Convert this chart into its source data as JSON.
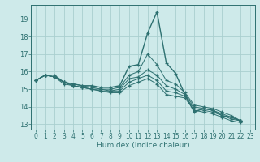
{
  "xlabel": "Humidex (Indice chaleur)",
  "bg_color": "#ceeaea",
  "grid_color": "#aacfcf",
  "line_color": "#2d7070",
  "xlim": [
    -0.5,
    23.5
  ],
  "ylim": [
    12.7,
    19.8
  ],
  "yticks": [
    13,
    14,
    15,
    16,
    17,
    18,
    19
  ],
  "xticks": [
    0,
    1,
    2,
    3,
    4,
    5,
    6,
    7,
    8,
    9,
    10,
    11,
    12,
    13,
    14,
    15,
    16,
    17,
    18,
    19,
    20,
    21,
    22,
    23
  ],
  "series": [
    [
      15.5,
      15.8,
      15.8,
      15.4,
      15.3,
      15.2,
      15.2,
      15.1,
      15.1,
      15.2,
      16.3,
      16.4,
      18.2,
      19.4,
      16.5,
      15.9,
      14.7,
      13.7,
      13.9,
      13.8,
      13.5,
      13.4,
      13.2
    ],
    [
      15.5,
      15.8,
      15.7,
      15.4,
      15.3,
      15.2,
      15.1,
      15.0,
      15.0,
      15.1,
      15.8,
      16.0,
      17.0,
      16.4,
      15.5,
      15.3,
      14.8,
      14.1,
      14.0,
      13.9,
      13.7,
      13.5,
      13.2
    ],
    [
      15.5,
      15.8,
      15.7,
      15.4,
      15.2,
      15.1,
      15.0,
      15.0,
      14.9,
      15.0,
      15.6,
      15.7,
      16.1,
      15.8,
      15.2,
      15.0,
      14.7,
      14.0,
      13.9,
      13.8,
      13.6,
      13.4,
      13.2
    ],
    [
      15.5,
      15.8,
      15.7,
      15.4,
      15.2,
      15.1,
      15.0,
      14.9,
      14.9,
      14.9,
      15.4,
      15.6,
      15.8,
      15.5,
      14.9,
      14.8,
      14.6,
      13.9,
      13.8,
      13.7,
      13.5,
      13.3,
      13.2
    ],
    [
      15.5,
      15.8,
      15.7,
      15.3,
      15.2,
      15.1,
      15.0,
      14.9,
      14.8,
      14.8,
      15.2,
      15.4,
      15.6,
      15.3,
      14.7,
      14.6,
      14.5,
      13.8,
      13.7,
      13.6,
      13.4,
      13.2,
      13.1
    ]
  ],
  "x_start": 0
}
